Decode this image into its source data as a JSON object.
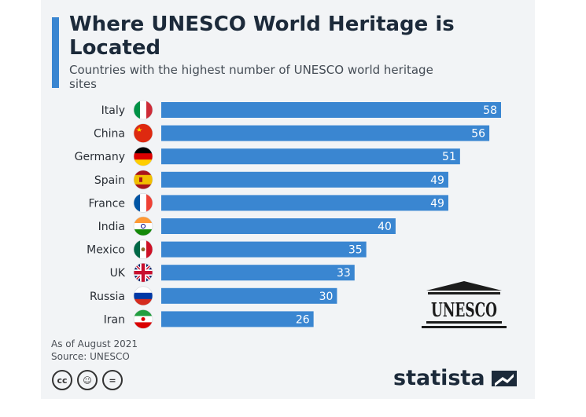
{
  "header": {
    "title": "Where UNESCO World Heritage is Located",
    "subtitle": "Countries with the highest number of UNESCO world heritage sites"
  },
  "chart_data": {
    "type": "bar",
    "orientation": "horizontal",
    "categories": [
      "Italy",
      "China",
      "Germany",
      "Spain",
      "France",
      "India",
      "Mexico",
      "UK",
      "Russia",
      "Iran"
    ],
    "values": [
      58,
      56,
      51,
      49,
      49,
      40,
      35,
      33,
      30,
      26
    ],
    "title": "Where UNESCO World Heritage is Located",
    "subtitle": "Countries with the highest number of UNESCO world heritage sites",
    "xlabel": "",
    "ylabel": "",
    "xlim": [
      0,
      58
    ],
    "grid": false,
    "bar_color": "#3a86d1",
    "flag_icons": [
      "italy-flag-icon",
      "china-flag-icon",
      "germany-flag-icon",
      "spain-flag-icon",
      "france-flag-icon",
      "india-flag-icon",
      "mexico-flag-icon",
      "uk-flag-icon",
      "russia-flag-icon",
      "iran-flag-icon"
    ]
  },
  "footnote": {
    "as_of": "As of August 2021",
    "source": "Source: UNESCO"
  },
  "license_icons": [
    "cc-icon",
    "by-person-icon",
    "nd-equals-icon"
  ],
  "license_glyphs": [
    "cc",
    "☺",
    "="
  ],
  "brand": {
    "name": "statista",
    "icon": "statista-logo-icon"
  },
  "logo": {
    "name": "UNESCO",
    "icon": "unesco-temple-logo"
  },
  "colors": {
    "accent": "#3a86d1",
    "background": "#f2f4f6",
    "title": "#1c2a3a"
  }
}
